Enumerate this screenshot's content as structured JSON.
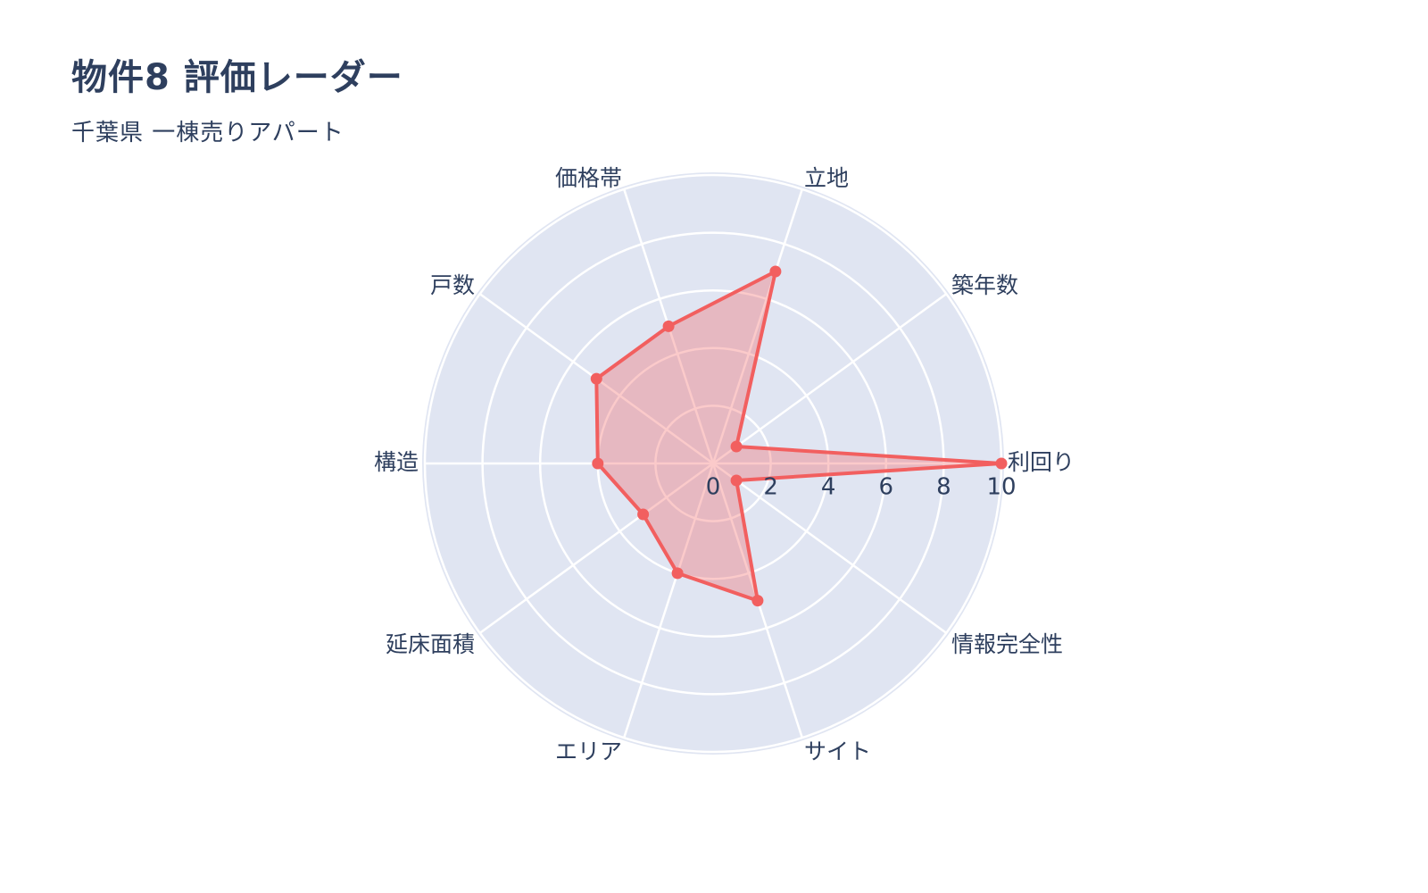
{
  "colors": {
    "text": "#2e3f5e",
    "series_line": "#f25f5f",
    "series_fill": "rgba(242,95,95,0.33)",
    "plot_bg": "#e0e5f2",
    "grid_line": "#ffffff",
    "page_bg": "#ffffff"
  },
  "chart_data": {
    "type": "radar",
    "title": "物件8 評価レーダー",
    "subtitle": "千葉県 一棟売りアパート",
    "categories": [
      "利回り",
      "築年数",
      "立地",
      "価格帯",
      "戸数",
      "構造",
      "延床面積",
      "エリア",
      "サイト",
      "情報完全性"
    ],
    "values": [
      10,
      1,
      7,
      5,
      5,
      4,
      3,
      4,
      5,
      1
    ],
    "angles_deg": [
      0,
      36,
      72,
      108,
      144,
      180,
      216,
      252,
      288,
      324
    ],
    "r_axis": {
      "min": 0,
      "max": 10,
      "ticks": [
        0,
        2,
        4,
        6,
        8,
        10
      ],
      "grid_rings": [
        2,
        4,
        6,
        8,
        10
      ]
    },
    "grid": true,
    "legend": "none"
  }
}
